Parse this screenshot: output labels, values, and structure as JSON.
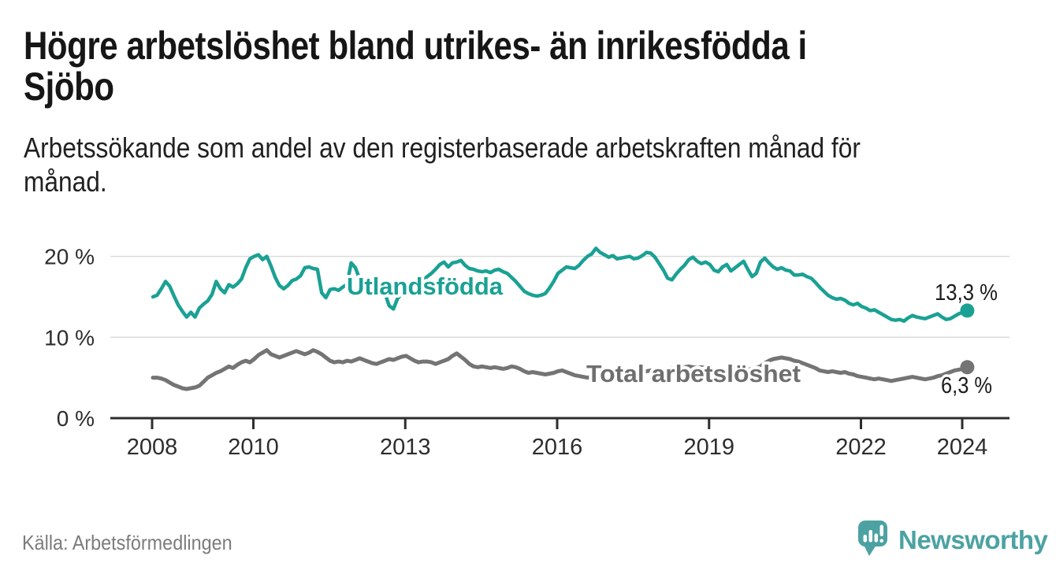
{
  "header": {
    "title": "Högre arbetslöshet bland utrikes- än inrikesfödda i Sjöbo",
    "title_lines": [
      "Högre arbetslöshet bland utrikes- än inrikesfödda i",
      "Sjöbo"
    ],
    "subtitle_lines": [
      "Arbetssökande som andel av den registerbaserade arbetskraften månad för",
      "månad."
    ]
  },
  "footer": {
    "source": "Källa: Arbetsförmedlingen",
    "brand": "Newsworthy"
  },
  "colors": {
    "foreign_series": "#1aa194",
    "foreign_label": "#1aa194",
    "total_series": "#747474",
    "total_label": "#6f6f6f",
    "value_label": "#1c1c1c",
    "axis": "#2d2d2d",
    "gridline": "#dcdcdc",
    "brand_teal": "#4ca2a2"
  },
  "icons": {
    "logo": "newsworthy-speech-bubble-bar-chart-icon"
  },
  "chart_data": {
    "type": "line",
    "title": "Högre arbetslöshet bland utrikes- än inrikesfödda i Sjöbo",
    "xlabel": "",
    "ylabel": "",
    "x_unit": "month",
    "x_start": "2008-01",
    "x_end": "2024-02",
    "x_ticks": [
      2008,
      2010,
      2013,
      2016,
      2019,
      2022,
      2024
    ],
    "y_ticks": [
      {
        "value": 0,
        "label": "0 %"
      },
      {
        "value": 10,
        "label": "10 %"
      },
      {
        "value": 20,
        "label": "20 %"
      }
    ],
    "ylim": [
      0,
      22
    ],
    "grid": "horizontal",
    "legend_position": "inline-labels",
    "series": [
      {
        "name": "Utlandsfödda",
        "color": "#1aa194",
        "end_label": "13,3 %",
        "end_value": 13.3,
        "values": [
          15.0,
          15.2,
          16.0,
          16.9,
          16.3,
          15.1,
          14.0,
          13.2,
          12.5,
          13.1,
          12.5,
          13.6,
          14.1,
          14.5,
          15.3,
          16.9,
          16.0,
          15.5,
          16.5,
          16.2,
          16.6,
          17.2,
          18.6,
          19.7,
          20.0,
          20.2,
          19.6,
          20.0,
          18.8,
          17.4,
          16.4,
          16.0,
          16.4,
          17.0,
          17.2,
          17.6,
          18.6,
          18.7,
          18.5,
          18.4,
          15.5,
          14.9,
          15.9,
          16.0,
          15.8,
          16.2,
          16.5,
          19.2,
          18.6,
          17.2,
          15.5,
          15.9,
          15.7,
          16.1,
          16.3,
          15.4,
          13.9,
          13.5,
          14.8,
          15.4,
          15.7,
          15.9,
          16.2,
          16.6,
          17.0,
          17.5,
          17.9,
          18.4,
          19.0,
          19.3,
          18.7,
          19.2,
          19.3,
          19.5,
          18.9,
          18.5,
          18.4,
          18.2,
          18.1,
          18.2,
          18.0,
          18.3,
          18.4,
          18.1,
          17.9,
          17.4,
          16.9,
          16.3,
          15.7,
          15.4,
          15.2,
          15.1,
          15.2,
          15.4,
          16.1,
          16.9,
          17.9,
          18.3,
          18.7,
          18.6,
          18.5,
          18.9,
          19.5,
          20.0,
          20.3,
          21.0,
          20.5,
          20.2,
          19.9,
          20.1,
          19.7,
          19.8,
          19.9,
          20.0,
          19.7,
          19.8,
          20.1,
          20.5,
          20.4,
          19.9,
          19.1,
          18.3,
          17.3,
          17.1,
          17.8,
          18.4,
          18.9,
          19.6,
          19.9,
          19.4,
          19.1,
          19.3,
          19.0,
          18.3,
          18.1,
          18.7,
          19.0,
          18.2,
          18.6,
          19.0,
          19.4,
          18.4,
          17.5,
          17.9,
          19.3,
          19.8,
          19.2,
          18.7,
          18.4,
          18.6,
          18.3,
          18.2,
          17.7,
          17.7,
          17.8,
          17.5,
          17.3,
          16.8,
          16.2,
          15.7,
          15.2,
          14.9,
          14.7,
          14.8,
          14.6,
          14.2,
          14.0,
          14.2,
          13.8,
          13.6,
          13.3,
          13.4,
          13.1,
          12.8,
          12.5,
          12.2,
          12.1,
          12.2,
          12.0,
          12.4,
          12.7,
          12.5,
          12.4,
          12.3,
          12.5,
          12.7,
          12.9,
          12.5,
          12.2,
          12.3,
          12.6,
          12.9,
          13.1,
          13.3
        ]
      },
      {
        "name": "Total arbetslöshet",
        "color": "#747474",
        "end_label": "6,3 %",
        "end_value": 6.3,
        "values": [
          5.0,
          5.0,
          4.9,
          4.7,
          4.4,
          4.1,
          3.9,
          3.7,
          3.6,
          3.7,
          3.8,
          4.0,
          4.5,
          5.0,
          5.3,
          5.6,
          5.8,
          6.1,
          6.4,
          6.2,
          6.6,
          6.9,
          7.1,
          6.9,
          7.3,
          7.8,
          8.1,
          8.4,
          7.9,
          7.7,
          7.5,
          7.7,
          7.9,
          8.1,
          8.3,
          8.1,
          7.9,
          8.1,
          8.4,
          8.2,
          7.9,
          7.5,
          7.1,
          6.9,
          7.0,
          6.9,
          7.1,
          7.0,
          7.2,
          7.4,
          7.2,
          7.0,
          6.8,
          6.7,
          6.9,
          7.1,
          7.3,
          7.2,
          7.4,
          7.6,
          7.7,
          7.4,
          7.1,
          6.9,
          7.0,
          7.0,
          6.9,
          6.7,
          6.9,
          7.1,
          7.3,
          7.7,
          8.0,
          7.6,
          7.2,
          6.7,
          6.4,
          6.3,
          6.4,
          6.3,
          6.2,
          6.3,
          6.2,
          6.1,
          6.2,
          6.4,
          6.3,
          6.1,
          5.8,
          5.6,
          5.7,
          5.6,
          5.5,
          5.4,
          5.5,
          5.6,
          5.8,
          5.9,
          5.7,
          5.5,
          5.3,
          5.2,
          5.1,
          5.0,
          5.1,
          5.2,
          5.3,
          5.4,
          5.5,
          5.6,
          5.5,
          5.4,
          5.5,
          5.6,
          5.5,
          5.6,
          5.7,
          5.8,
          5.9,
          6.0,
          6.1,
          6.0,
          6.1,
          6.2,
          6.1,
          6.2,
          6.3,
          6.4,
          6.3,
          6.2,
          6.3,
          6.2,
          6.1,
          6.0,
          5.9,
          5.8,
          5.9,
          5.8,
          5.9,
          6.0,
          5.9,
          6.0,
          6.1,
          6.2,
          6.4,
          6.8,
          7.1,
          7.3,
          7.4,
          7.5,
          7.4,
          7.3,
          7.1,
          7.0,
          6.8,
          6.6,
          6.4,
          6.2,
          5.9,
          5.8,
          5.7,
          5.8,
          5.7,
          5.6,
          5.7,
          5.5,
          5.4,
          5.2,
          5.1,
          5.0,
          4.9,
          4.8,
          4.9,
          4.8,
          4.7,
          4.6,
          4.7,
          4.8,
          4.9,
          5.0,
          5.1,
          5.0,
          4.9,
          4.8,
          4.9,
          5.0,
          5.2,
          5.3,
          5.5,
          5.7,
          5.9,
          6.0,
          6.1,
          6.3
        ]
      }
    ]
  }
}
